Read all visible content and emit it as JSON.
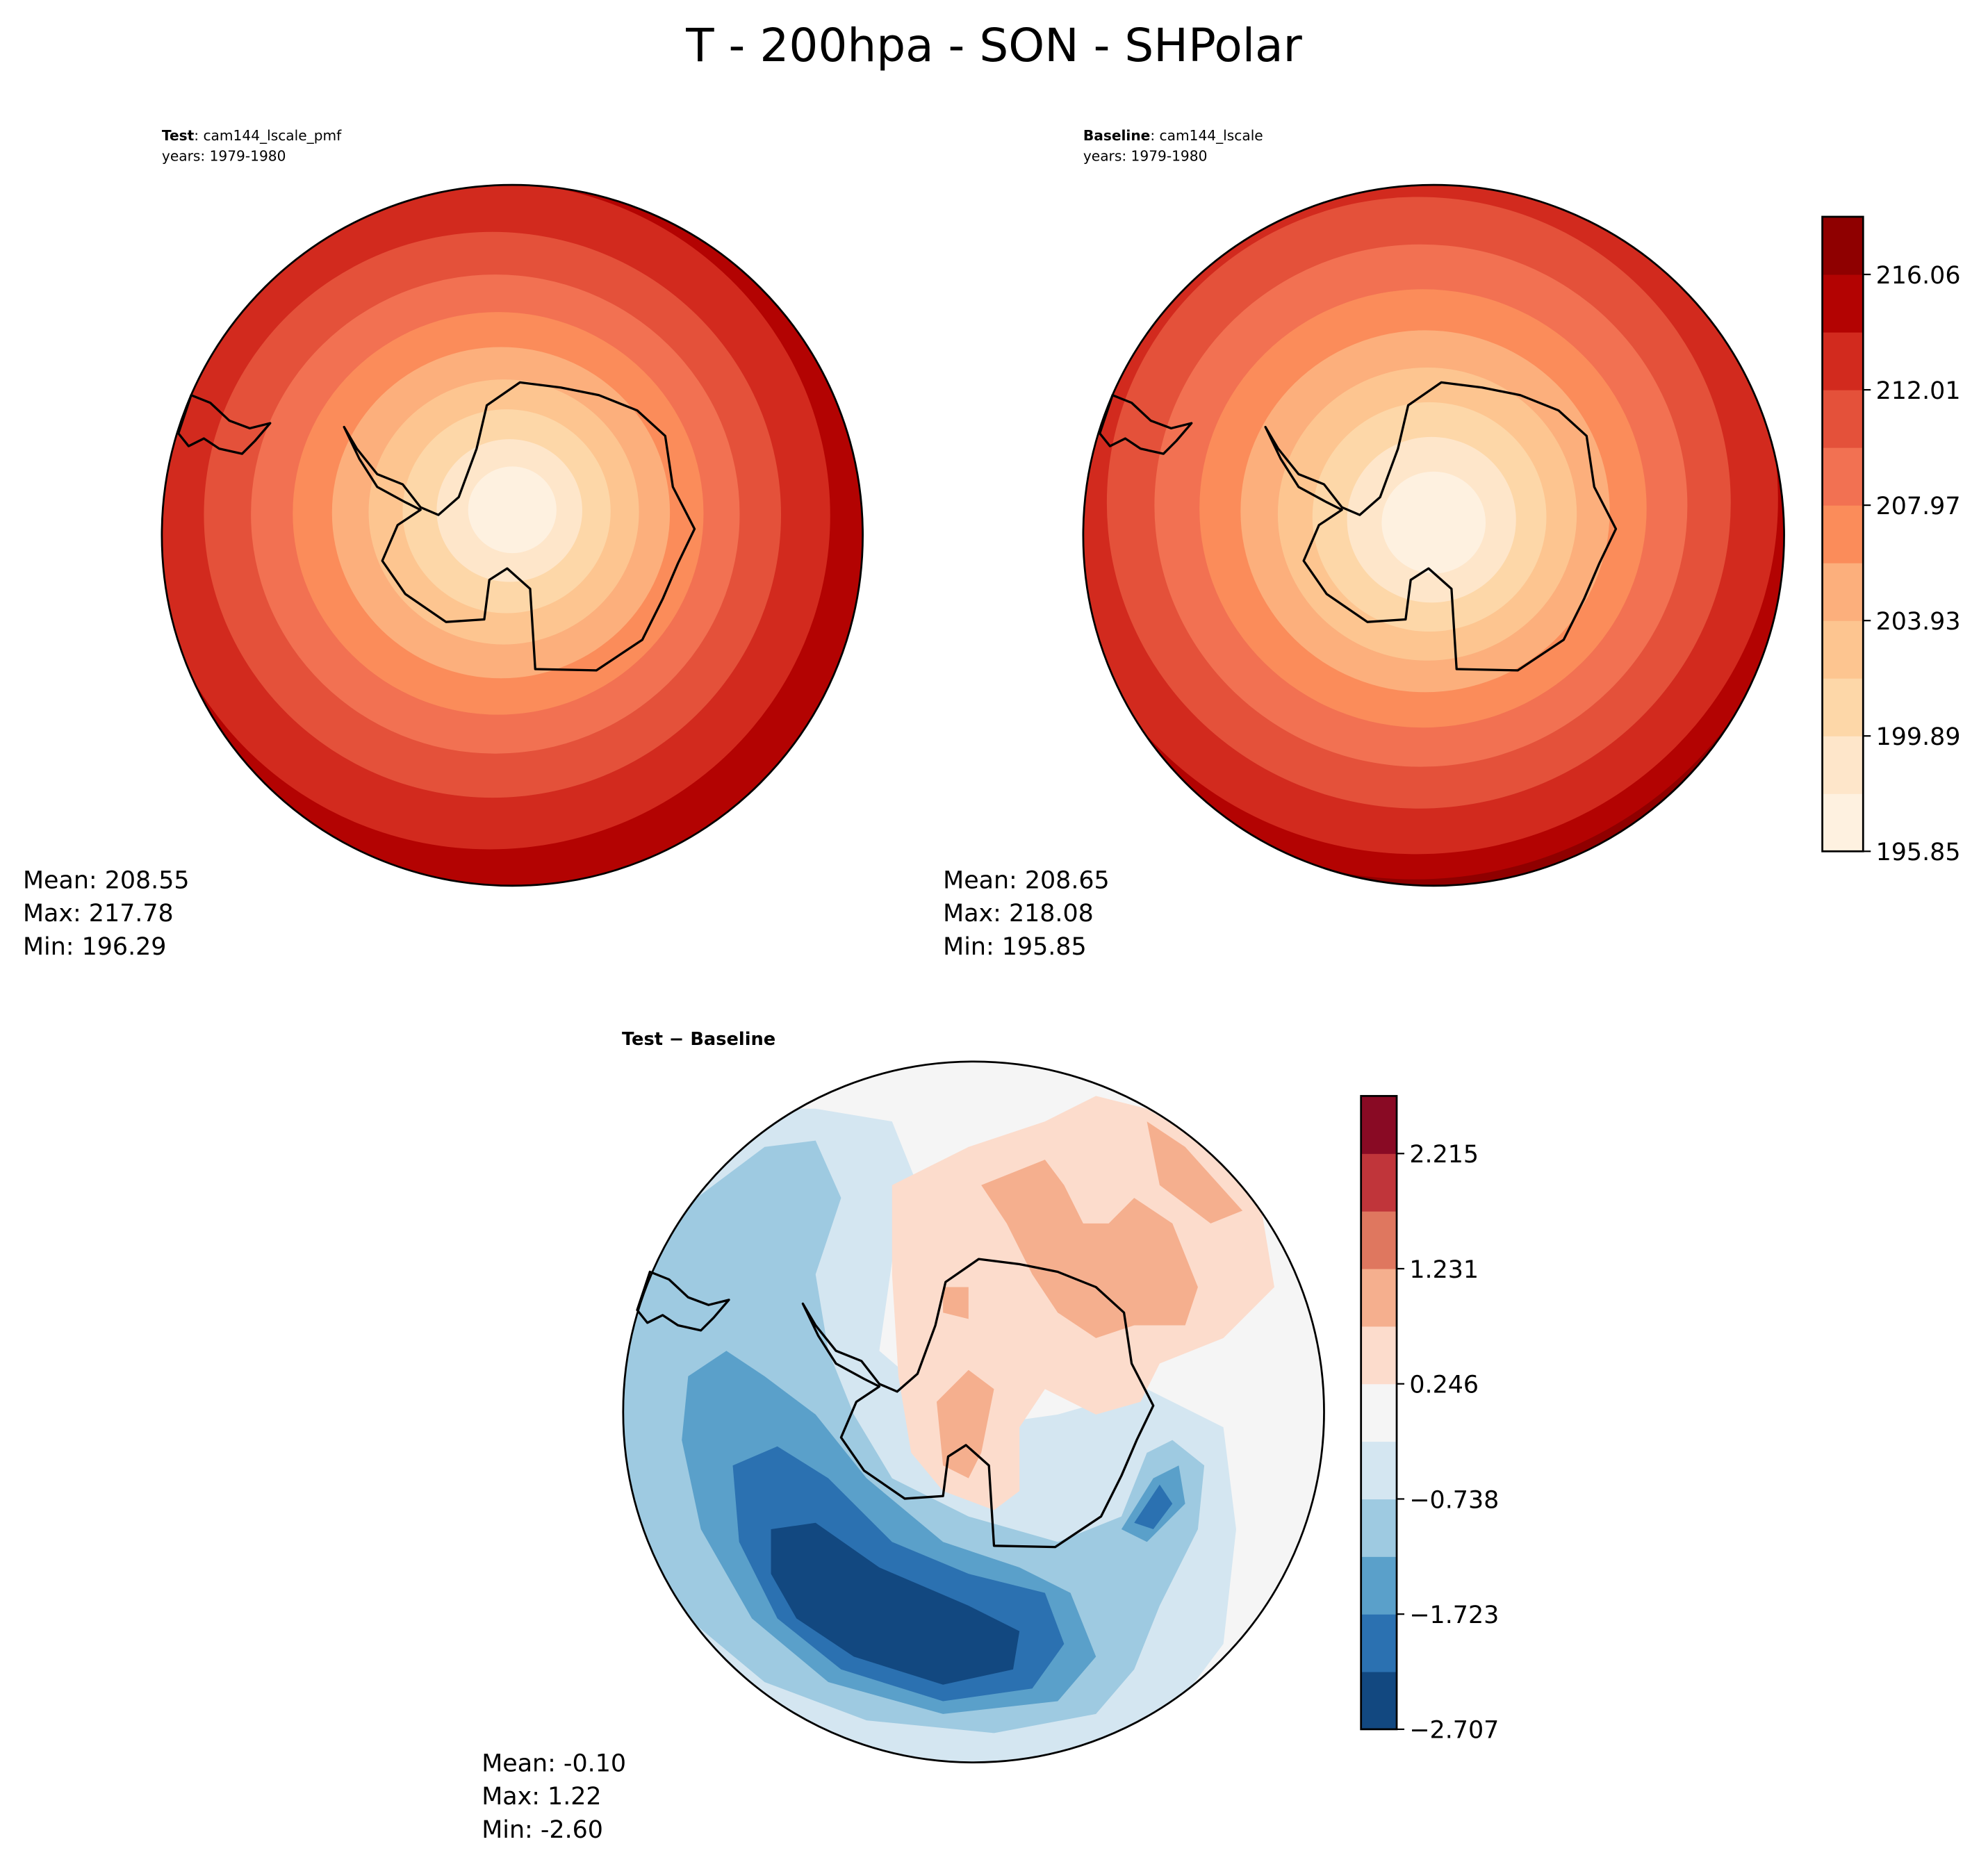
{
  "chart_data": [
    {
      "type": "heatmap",
      "title": "T - 200hpa - SON - SHPolar",
      "panel": "test",
      "label_bold": "Test",
      "label_rest": ": cam144_lscale_pmf",
      "years": "years: 1979-1980",
      "stats": {
        "mean": "Mean: 208.55",
        "max": "Max: 217.78",
        "min": "Min: 196.29"
      },
      "projection": "south polar stereographic"
    },
    {
      "type": "heatmap",
      "panel": "baseline",
      "label_bold": "Baseline",
      "label_rest": ": cam144_lscale",
      "years": "years: 1979-1980",
      "stats": {
        "mean": "Mean: 208.65",
        "max": "Max: 218.08",
        "min": "Min: 195.85"
      },
      "colorbar": {
        "levels": [
          195.85,
          197.87,
          199.89,
          201.91,
          203.93,
          205.95,
          207.97,
          209.99,
          212.01,
          214.03,
          216.06,
          218.08
        ],
        "tick_labels": [
          "195.85",
          "199.89",
          "203.93",
          "207.97",
          "212.01",
          "216.06"
        ],
        "tick_level_index": [
          0,
          2,
          4,
          6,
          8,
          10
        ],
        "colors": [
          "#fef1e0",
          "#fee6ca",
          "#fdd7a8",
          "#fdc590",
          "#fcaf7c",
          "#fb8c5a",
          "#f27152",
          "#e4513a",
          "#d22a1e",
          "#b30302",
          "#8f0000"
        ]
      }
    },
    {
      "type": "heatmap",
      "panel": "difference",
      "label": "Test − Baseline",
      "stats": {
        "mean": "Mean: -0.10",
        "max": "Max:  1.22",
        "min": "Min: -2.60"
      },
      "colorbar": {
        "levels": [
          -2.707,
          -2.215,
          -1.723,
          -1.231,
          -0.738,
          -0.246,
          0.246,
          0.738,
          1.231,
          1.723,
          2.215,
          2.707
        ],
        "tick_labels": [
          "−2.707",
          "−1.723",
          "−0.738",
          "0.246",
          "1.231",
          "2.215"
        ],
        "tick_level_index": [
          0,
          2,
          4,
          6,
          8,
          10
        ],
        "colors": [
          "#124880",
          "#2b71b1",
          "#5aa0ca",
          "#9ecae1",
          "#d4e6f1",
          "#f5f5f5",
          "#fcdccc",
          "#f5af8e",
          "#df775f",
          "#c0353a",
          "#890a24"
        ]
      }
    }
  ]
}
